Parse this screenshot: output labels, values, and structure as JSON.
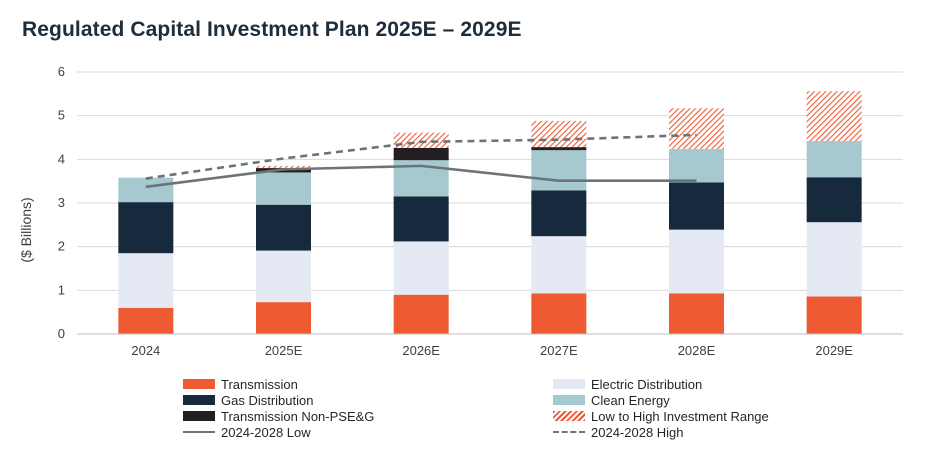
{
  "title": "Regulated Capital Investment Plan 2025E – 2029E",
  "chart_data": {
    "type": "bar",
    "stacked": true,
    "title": "Regulated Capital Investment Plan 2025E – 2029E",
    "ylabel": "($ Billions)",
    "xlabel": "",
    "ylim": [
      0,
      6
    ],
    "yticks": [
      0,
      1,
      2,
      3,
      4,
      5,
      6
    ],
    "grid": true,
    "legend_position": "bottom",
    "categories": [
      "2024",
      "2025E",
      "2026E",
      "2027E",
      "2028E",
      "2029E"
    ],
    "series": [
      {
        "name": "Transmission",
        "color": "#ee5a32",
        "values": [
          0.6,
          0.73,
          0.9,
          0.93,
          0.93,
          0.86
        ]
      },
      {
        "name": "Electric Distribution",
        "color": "#e5e9f4",
        "values": [
          1.25,
          1.18,
          1.22,
          1.31,
          1.46,
          1.7
        ]
      },
      {
        "name": "Gas Distribution",
        "color": "#17293d",
        "values": [
          1.17,
          1.05,
          1.03,
          1.05,
          1.08,
          1.03
        ]
      },
      {
        "name": "Clean Energy",
        "color": "#a6c9cf",
        "values": [
          0.56,
          0.74,
          0.83,
          0.92,
          0.77,
          0.83
        ]
      },
      {
        "name": "Transmission Non-PSE&G",
        "color": "#231f20",
        "values": [
          0.0,
          0.1,
          0.28,
          0.07,
          0.0,
          0.0
        ]
      },
      {
        "name": "Low to High Investment Range",
        "color": "#ee5a32",
        "pattern": "hatch",
        "values": [
          0.0,
          0.05,
          0.35,
          0.6,
          0.93,
          1.14
        ]
      }
    ],
    "lines": [
      {
        "name": "2024-2028 Low",
        "color": "#6b7479",
        "style": "solid",
        "x": [
          "2024",
          "2025E",
          "2026E",
          "2027E",
          "2028E"
        ],
        "values": [
          3.37,
          3.77,
          3.85,
          3.51,
          3.51
        ]
      },
      {
        "name": "2024-2028 High",
        "color": "#6b7479",
        "style": "dashed",
        "x": [
          "2024",
          "2025E",
          "2026E",
          "2027E",
          "2028E"
        ],
        "values": [
          3.56,
          4.02,
          4.4,
          4.45,
          4.56
        ]
      }
    ]
  },
  "legend": {
    "left": [
      "Transmission",
      "Gas Distribution",
      "Transmission Non-PSE&G",
      "2024-2028 Low"
    ],
    "right": [
      "Electric Distribution",
      "Clean Energy",
      "Low to High Investment Range",
      "2024-2028 High"
    ]
  }
}
